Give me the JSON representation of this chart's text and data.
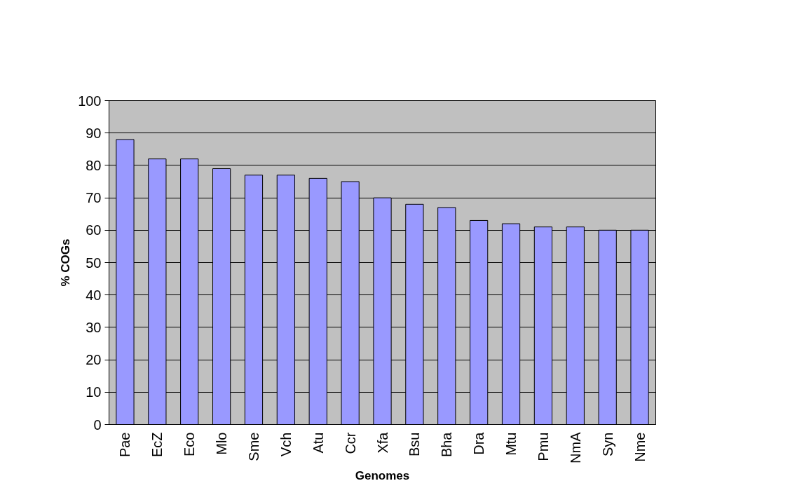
{
  "chart_data": {
    "type": "bar",
    "xlabel": "Genomes",
    "ylabel": "% COGs",
    "categories": [
      "Pae",
      "EcZ",
      "Eco",
      "Mlo",
      "Sme",
      "Vch",
      "Atu",
      "Ccr",
      "Xfa",
      "Bsu",
      "Bha",
      "Dra",
      "Mtu",
      "Pmu",
      "NmA",
      "Syn",
      "Nme"
    ],
    "values": [
      88,
      82,
      82,
      79,
      77,
      77,
      76,
      75,
      70,
      68,
      67,
      63,
      62,
      61,
      61,
      60,
      60
    ],
    "color": "#9999ff",
    "ylim": [
      0,
      100
    ],
    "yticks": [
      0,
      10,
      20,
      30,
      40,
      50,
      60,
      70,
      80,
      90,
      100
    ],
    "grid": "y"
  }
}
